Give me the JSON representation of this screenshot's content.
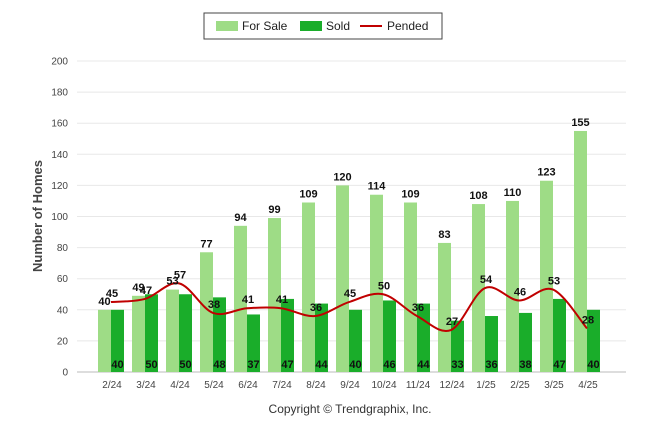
{
  "chart_data": {
    "type": "bar",
    "ylabel": "Number of Homes",
    "xlabel": "",
    "ylim": [
      0,
      200
    ],
    "yticks": [
      0,
      20,
      40,
      60,
      80,
      100,
      120,
      140,
      160,
      180,
      200
    ],
    "grid": true,
    "legend_position": "top-center",
    "categories": [
      "2/24",
      "3/24",
      "4/24",
      "5/24",
      "6/24",
      "7/24",
      "8/24",
      "9/24",
      "10/24",
      "11/24",
      "12/24",
      "1/25",
      "2/25",
      "3/25",
      "4/25"
    ],
    "series": [
      {
        "name": "For Sale",
        "kind": "bar",
        "color": "#9edc86",
        "values": [
          40,
          49,
          53,
          77,
          94,
          99,
          109,
          120,
          114,
          109,
          83,
          108,
          110,
          123,
          155
        ]
      },
      {
        "name": "Sold",
        "kind": "bar",
        "color": "#1aad2a",
        "values": [
          40,
          50,
          50,
          48,
          37,
          47,
          44,
          40,
          46,
          44,
          33,
          36,
          38,
          47,
          40
        ]
      },
      {
        "name": "Pended",
        "kind": "line",
        "color": "#c00000",
        "values": [
          45,
          47,
          57,
          38,
          41,
          41,
          36,
          45,
          50,
          36,
          27,
          54,
          46,
          53,
          28
        ]
      }
    ],
    "footer": "Copyright © Trendgraphix, Inc."
  }
}
